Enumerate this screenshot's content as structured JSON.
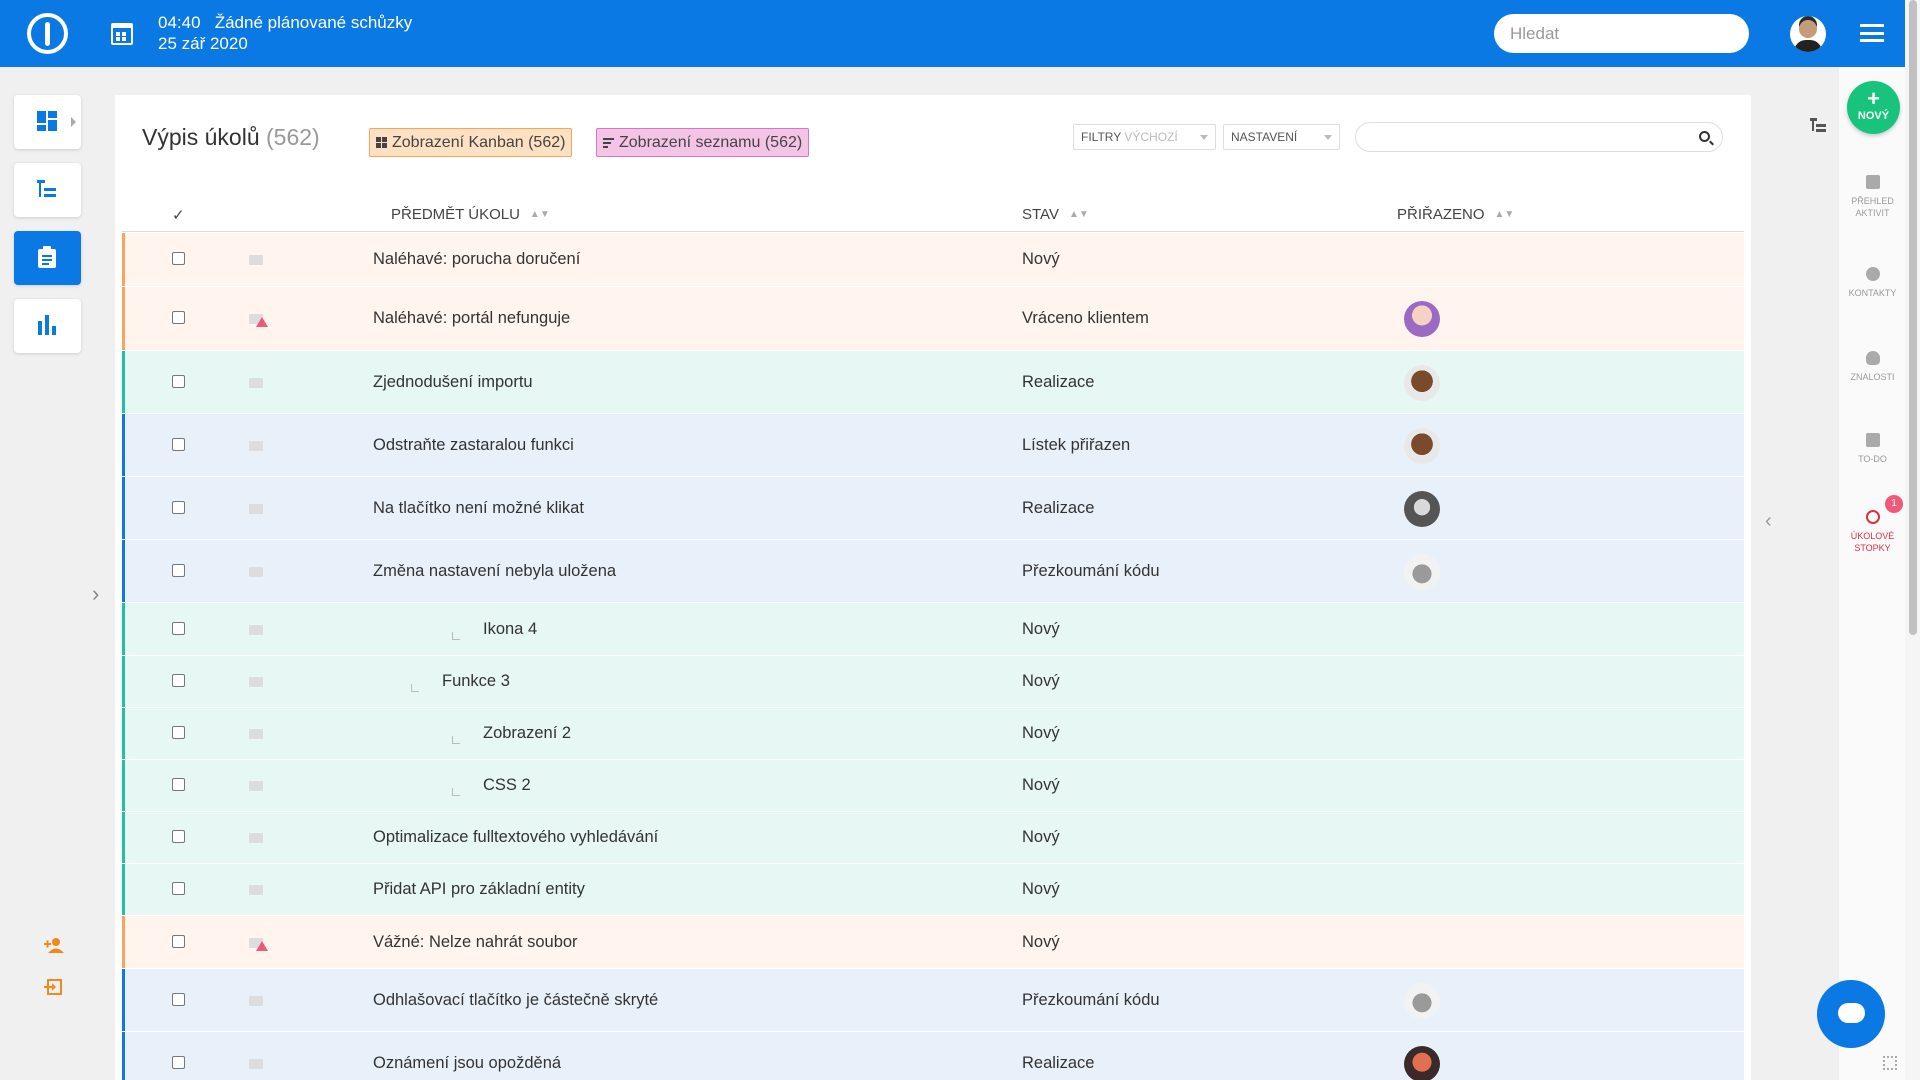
{
  "header": {
    "time": "04:40",
    "meeting": "Žádné plánované schůzky",
    "date": "25 zář 2020",
    "search_placeholder": "Hledat"
  },
  "page": {
    "title": "Výpis úkolů",
    "count": "(562)",
    "kanban_label": "Zobrazení Kanban (562)",
    "list_label": "Zobrazení seznamu (562)",
    "filter_label": "FILTRY",
    "filter_value": "VÝCHOZÍ",
    "settings_label": "NASTAVENÍ"
  },
  "table": {
    "check_header": "✓",
    "col_subject": "PŘEDMĚT ÚKOLU",
    "col_status": "STAV",
    "col_assigned": "PŘIŘAZENO",
    "rows": [
      {
        "subject": "Naléhavé: porucha doručení",
        "status": "Nový"
      },
      {
        "subject": "Naléhavé: portál nefunguje",
        "status": "Vráceno klientem"
      },
      {
        "subject": "Zjednodušení importu",
        "status": "Realizace"
      },
      {
        "subject": "Odstraňte zastaralou funkci",
        "status": "Lístek přiřazen"
      },
      {
        "subject": "Na tlačítko není možné klikat",
        "status": "Realizace"
      },
      {
        "subject": "Změna nastavení nebyla uložena",
        "status": "Přezkoumání kódu"
      },
      {
        "subject": "Ikona 4",
        "status": "Nový"
      },
      {
        "subject": "Funkce 3",
        "status": "Nový"
      },
      {
        "subject": "Zobrazení 2",
        "status": "Nový"
      },
      {
        "subject": "CSS 2",
        "status": "Nový"
      },
      {
        "subject": "Optimalizace fulltextového vyhledávání",
        "status": "Nový"
      },
      {
        "subject": "Přidat API pro základní entity",
        "status": "Nový"
      },
      {
        "subject": "Vážné: Nelze nahrát soubor",
        "status": "Nový"
      },
      {
        "subject": "Odhlašovací tlačítko je částečně skryté",
        "status": "Přezkoumání kódu"
      },
      {
        "subject": "Oznámení jsou opožděná",
        "status": "Realizace"
      }
    ]
  },
  "rightbar": {
    "new_label": "NOVÝ",
    "activity": "PŘEHLED AKTIVIT",
    "contacts": "KONTAKTY",
    "knowledge": "ZNALOSTI",
    "todo": "TO-DO",
    "timers": "ÚKOLOVÉ STOPKY",
    "timers_badge": "1"
  },
  "colors": {
    "primary": "#0b79e3",
    "urgent_row": "#fff5ee",
    "teal_row": "#e6f7f4",
    "blue_row": "#e8f1fa",
    "orange_bar": "#f5a65b",
    "teal_bar": "#1fc1a0",
    "blue_bar": "#0b79e3"
  }
}
